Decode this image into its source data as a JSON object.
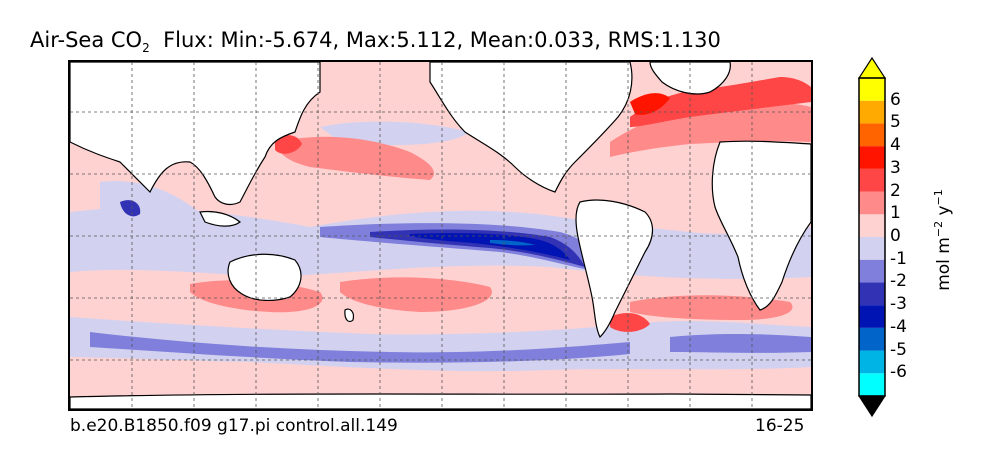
{
  "title": {
    "prefix": "Air-Sea CO",
    "subscript": "2",
    "stats": "Flux: Min:-5.674, Max:5.112, Mean:0.033, RMS:1.130"
  },
  "footer": {
    "case_name": "b.e20.B1850.f09 g17.pi control.all.149",
    "years": "16-25"
  },
  "colorbar": {
    "units_base": "mol m",
    "units_exp1": "−2",
    "units_mid": " y",
    "units_exp2": "−1",
    "tick_labels": [
      "6",
      "5",
      "4",
      "3",
      "2",
      "1",
      "0",
      "-1",
      "-2",
      "-3",
      "-4",
      "-5",
      "-6"
    ],
    "colors": [
      "#00ffff",
      "#00b4e6",
      "#0064c8",
      "#0014b4",
      "#3232b4",
      "#8080dc",
      "#d2d2f0",
      "#ffd2d2",
      "#ff8a8a",
      "#ff4646",
      "#ff1400",
      "#ff6400",
      "#ffaa00",
      "#ffff00"
    ],
    "ocean_colors": {
      "neutral_neg": "#d2d2f0",
      "neutral_pos": "#ffd2d2",
      "pos1": "#ff8a8a",
      "pos2": "#ff4646",
      "pos3": "#ff1400",
      "neg1": "#8080dc",
      "neg2": "#3232b4",
      "neg3": "#0014b4",
      "neg4": "#0064c8",
      "land": "#ffffff"
    }
  }
}
